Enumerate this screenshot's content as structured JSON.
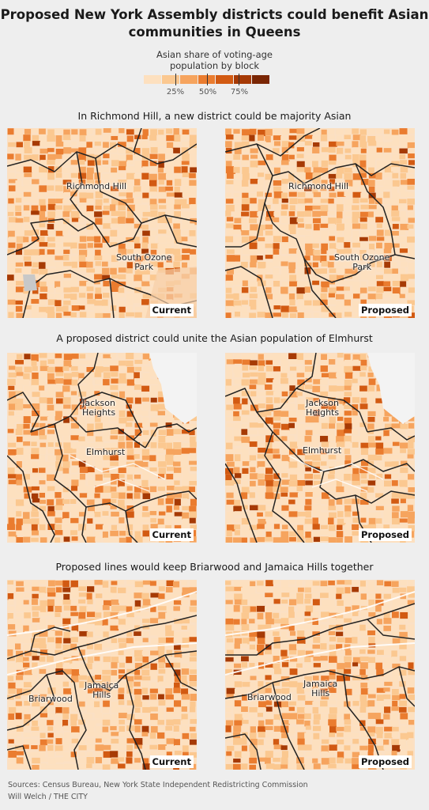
{
  "header": {
    "title_line1": "Proposed New York Assembly districts could benefit Asian",
    "title_line2": "communities in Queens"
  },
  "legend": {
    "title_line1": "Asian share of voting-age",
    "title_line2": "population by block",
    "colors": [
      "#fde0bf",
      "#fbc890",
      "#f6a45e",
      "#ea7c2f",
      "#d25a12",
      "#a63a05",
      "#7a2604"
    ],
    "labels": [
      "25%",
      "50%",
      "75%"
    ]
  },
  "sections": [
    {
      "title": "In Richmond Hill, a new district could be majority Asian",
      "maps": [
        {
          "tag": "Current",
          "places": [
            [
              "Richmond Hill"
            ],
            [
              "South Ozone",
              "Park"
            ]
          ]
        },
        {
          "tag": "Proposed",
          "places": [
            [
              "Richmond Hill"
            ],
            [
              "South Ozone",
              "Park"
            ]
          ]
        }
      ]
    },
    {
      "title": "A proposed district could unite the Asian population of Elmhurst",
      "maps": [
        {
          "tag": "Current",
          "places": [
            [
              "Jackson",
              "Heights"
            ],
            [
              "Elmhurst"
            ]
          ]
        },
        {
          "tag": "Proposed",
          "places": [
            [
              "Jackson",
              "Heights"
            ],
            [
              "Elmhurst"
            ]
          ]
        }
      ]
    },
    {
      "title": "Proposed lines would keep Briarwood and Jamaica Hills together",
      "maps": [
        {
          "tag": "Current",
          "places": [
            [
              "Briarwood"
            ],
            [
              "Jamaica",
              "Hills"
            ]
          ]
        },
        {
          "tag": "Proposed",
          "places": [
            [
              "Briarwood"
            ],
            [
              "Jamaica",
              "Hills"
            ]
          ]
        }
      ]
    }
  ],
  "footer": {
    "sources": "Sources: Census Bureau, New York State Independent Redistricting Commission",
    "credit": "Will Welch / THE CITY"
  }
}
